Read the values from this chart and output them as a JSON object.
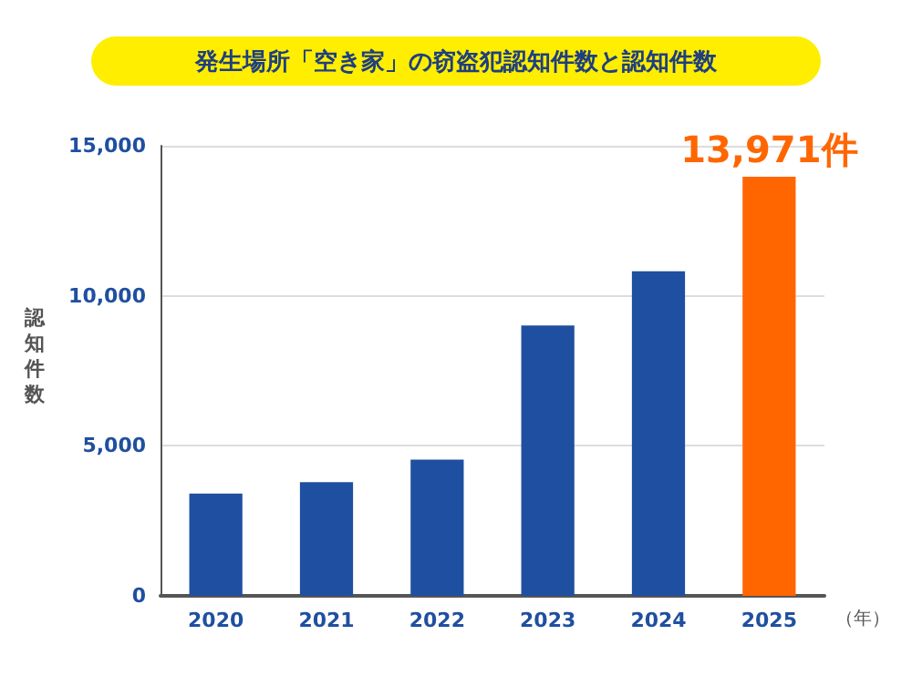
{
  "chart_data": {
    "type": "bar",
    "title": "発生場所「空き家」の窃盗犯認知件数と認知件数",
    "xlabel": "（年）",
    "ylabel": "認知件数",
    "categories": [
      "2020",
      "2021",
      "2022",
      "2023",
      "2024",
      "2025"
    ],
    "values": [
      3410,
      3790,
      4540,
      9010,
      10820,
      13971
    ],
    "colors": [
      "#1f4fa0",
      "#1f4fa0",
      "#1f4fa0",
      "#1f4fa0",
      "#1f4fa0",
      "#ff6600"
    ],
    "value_labels": [
      null,
      null,
      null,
      null,
      null,
      "13,971件"
    ],
    "ylim": [
      0,
      15000
    ],
    "yticks": [
      {
        "value": 0,
        "label": "0"
      },
      {
        "value": 5000,
        "label": "5,000"
      },
      {
        "value": 10000,
        "label": "10,000"
      },
      {
        "value": 15000,
        "label": "15,000"
      }
    ],
    "grid": "y"
  }
}
